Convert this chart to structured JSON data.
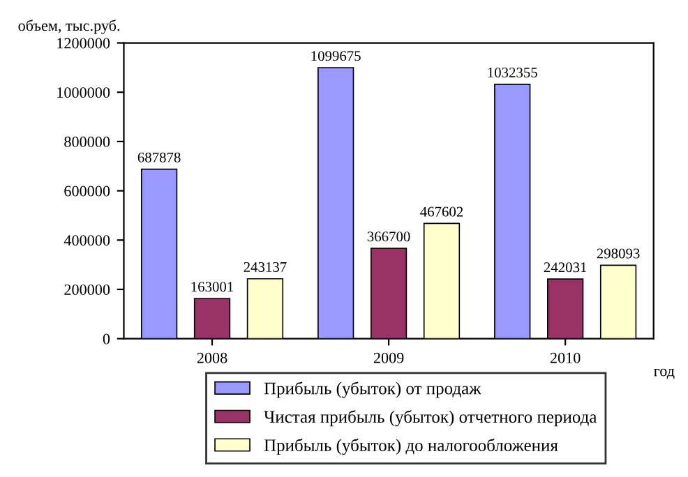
{
  "chart_data": {
    "type": "bar",
    "ylabel": "объем, тыс.руб.",
    "xlabel": "год",
    "categories": [
      "2008",
      "2009",
      "2010"
    ],
    "series": [
      {
        "name": "Прибыль (убыток) от продаж",
        "color": "#9999ff",
        "values": [
          687878,
          1099675,
          1032355
        ]
      },
      {
        "name": "Чистая прибыль (убыток) отчетного периода",
        "color": "#993366",
        "values": [
          163001,
          366700,
          242031
        ]
      },
      {
        "name": "Прибыль (убыток) до налогообложения",
        "color": "#ffffcc",
        "values": [
          243137,
          467602,
          298093
        ]
      }
    ],
    "ylim": [
      0,
      1200000
    ],
    "yticks": [
      0,
      200000,
      400000,
      600000,
      800000,
      1000000,
      1200000
    ],
    "data_labels": true,
    "legend": "bottom",
    "grid": false
  }
}
